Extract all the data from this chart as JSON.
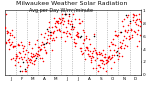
{
  "title": "Milwaukee Weather Solar Radiation",
  "subtitle": "Avg per Day W/m²/minute",
  "title_fontsize": 4.5,
  "subtitle_fontsize": 3.5,
  "figsize": [
    1.6,
    0.87
  ],
  "dpi": 100,
  "background_color": "#ffffff",
  "dot_color_primary": "#ff0000",
  "dot_color_secondary": "#000000",
  "ylim": [
    0,
    1.0
  ],
  "xlim": [
    1,
    365
  ],
  "grid_color": "#999999",
  "grid_style": "--",
  "tick_fontsize": 3.0,
  "month_starts": [
    1,
    32,
    60,
    91,
    121,
    152,
    182,
    213,
    244,
    274,
    305,
    335,
    366
  ],
  "month_labels": [
    "J",
    "F",
    "M",
    "A",
    "M",
    "J",
    "J",
    "A",
    "S",
    "O",
    "N",
    "D"
  ],
  "month_mids": [
    16,
    46,
    75,
    106,
    136,
    167,
    197,
    228,
    259,
    289,
    320,
    350
  ],
  "y_ticks": [
    0.0,
    0.2,
    0.4,
    0.6,
    0.8,
    1.0
  ],
  "y_labels": [
    "0",
    ".2",
    ".4",
    ".6",
    ".8",
    "1"
  ]
}
